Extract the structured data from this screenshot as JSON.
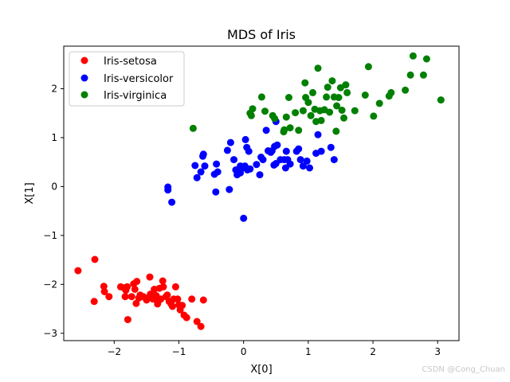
{
  "chart_data": {
    "type": "scatter",
    "title": "MDS of Iris",
    "xlabel": "X[0]",
    "ylabel": "X[1]",
    "xlim": [
      -2.78,
      3.33
    ],
    "ylim": [
      -3.15,
      2.87
    ],
    "xticks": [
      -2,
      -1,
      0,
      1,
      2,
      3
    ],
    "yticks": [
      -3,
      -2,
      -1,
      0,
      1,
      2
    ],
    "tick_labels_x": [
      "−2",
      "−1",
      "0",
      "1",
      "2",
      "3"
    ],
    "tick_labels_y": [
      "−3",
      "−2",
      "−1",
      "0",
      "1",
      "2"
    ],
    "grid": false,
    "legend": "top-left",
    "series": [
      {
        "name": "Iris-setosa",
        "color": "#ff0000",
        "points": [
          [
            -2.56,
            -1.72
          ],
          [
            -2.3,
            -1.49
          ],
          [
            -2.31,
            -2.35
          ],
          [
            -2.16,
            -2.04
          ],
          [
            -2.15,
            -2.15
          ],
          [
            -2.08,
            -2.25
          ],
          [
            -1.9,
            -2.05
          ],
          [
            -1.85,
            -2.07
          ],
          [
            -1.82,
            -2.12
          ],
          [
            -1.83,
            -2.25
          ],
          [
            -1.8,
            -2.05
          ],
          [
            -1.79,
            -2.72
          ],
          [
            -1.73,
            -2.25
          ],
          [
            -1.7,
            -1.99
          ],
          [
            -1.68,
            -2.1
          ],
          [
            -1.66,
            -2.39
          ],
          [
            -1.65,
            -1.94
          ],
          [
            -1.62,
            -2.28
          ],
          [
            -1.55,
            -2.25
          ],
          [
            -1.5,
            -2.32
          ],
          [
            -1.48,
            -2.28
          ],
          [
            -1.45,
            -1.85
          ],
          [
            -1.44,
            -2.2
          ],
          [
            -1.4,
            -2.3
          ],
          [
            -1.38,
            -2.1
          ],
          [
            -1.35,
            -2.23
          ],
          [
            -1.33,
            -2.4
          ],
          [
            -1.32,
            -2.35
          ],
          [
            -1.3,
            -2.08
          ],
          [
            -1.28,
            -2.3
          ],
          [
            -1.25,
            -1.93
          ],
          [
            -1.24,
            -2.05
          ],
          [
            -1.2,
            -2.25
          ],
          [
            -1.18,
            -2.22
          ],
          [
            -1.15,
            -2.35
          ],
          [
            -1.12,
            -2.4
          ],
          [
            -1.1,
            -2.45
          ],
          [
            -1.08,
            -2.3
          ],
          [
            -1.05,
            -2.05
          ],
          [
            -1.02,
            -2.3
          ],
          [
            -1.0,
            -2.42
          ],
          [
            -0.98,
            -2.52
          ],
          [
            -0.95,
            -2.43
          ],
          [
            -0.92,
            -2.63
          ],
          [
            -0.88,
            -2.68
          ],
          [
            -0.8,
            -2.3
          ],
          [
            -0.72,
            -2.76
          ],
          [
            -0.66,
            -2.86
          ],
          [
            -0.62,
            -2.32
          ],
          [
            -1.6,
            -2.22
          ]
        ]
      },
      {
        "name": "Iris-versicolor",
        "color": "#0000ff",
        "points": [
          [
            -1.17,
            -0.07
          ],
          [
            -1.17,
            -0.01
          ],
          [
            -1.11,
            -0.32
          ],
          [
            -0.75,
            0.43
          ],
          [
            -0.72,
            0.18
          ],
          [
            -0.66,
            0.3
          ],
          [
            -0.63,
            0.62
          ],
          [
            -0.62,
            0.66
          ],
          [
            -0.6,
            0.42
          ],
          [
            -0.45,
            0.25
          ],
          [
            -0.43,
            -0.11
          ],
          [
            -0.42,
            0.46
          ],
          [
            -0.4,
            0.3
          ],
          [
            -0.25,
            0.74
          ],
          [
            -0.22,
            -0.06
          ],
          [
            -0.2,
            0.9
          ],
          [
            -0.15,
            0.55
          ],
          [
            -0.12,
            0.34
          ],
          [
            -0.1,
            0.24
          ],
          [
            -0.07,
            0.32
          ],
          [
            -0.05,
            0.42
          ],
          [
            -0.05,
            0.28
          ],
          [
            -0.02,
            0.38
          ],
          [
            0.0,
            -0.65
          ],
          [
            0.02,
            0.42
          ],
          [
            0.03,
            0.96
          ],
          [
            0.05,
            0.8
          ],
          [
            0.06,
            0.34
          ],
          [
            0.08,
            0.72
          ],
          [
            0.1,
            0.36
          ],
          [
            0.2,
            0.45
          ],
          [
            0.25,
            0.24
          ],
          [
            0.27,
            0.6
          ],
          [
            0.3,
            0.55
          ],
          [
            0.35,
            1.15
          ],
          [
            0.38,
            0.73
          ],
          [
            0.42,
            0.7
          ],
          [
            0.44,
            0.73
          ],
          [
            0.47,
            0.44
          ],
          [
            0.48,
            0.82
          ],
          [
            0.5,
            0.47
          ],
          [
            0.5,
            1.33
          ],
          [
            0.52,
            0.85
          ],
          [
            0.57,
            0.55
          ],
          [
            0.63,
            0.55
          ],
          [
            0.66,
            0.72
          ],
          [
            0.68,
            0.55
          ],
          [
            0.72,
            0.46
          ],
          [
            0.82,
            0.72
          ],
          [
            0.85,
            0.77
          ],
          [
            0.88,
            0.55
          ],
          [
            0.92,
            0.42
          ],
          [
            0.98,
            0.52
          ],
          [
            1.02,
            0.38
          ],
          [
            1.12,
            0.68
          ],
          [
            1.15,
            1.06
          ],
          [
            1.2,
            0.72
          ],
          [
            1.35,
            0.8
          ],
          [
            1.4,
            0.55
          ],
          [
            0.65,
            0.38
          ]
        ]
      },
      {
        "name": "Iris-virginica",
        "color": "#008000",
        "points": [
          [
            -0.78,
            1.19
          ],
          [
            0.1,
            1.5
          ],
          [
            0.12,
            1.45
          ],
          [
            0.14,
            1.59
          ],
          [
            0.28,
            1.83
          ],
          [
            0.33,
            1.54
          ],
          [
            0.45,
            1.45
          ],
          [
            0.48,
            1.39
          ],
          [
            0.62,
            1.12
          ],
          [
            0.63,
            1.16
          ],
          [
            0.66,
            1.42
          ],
          [
            0.7,
            1.82
          ],
          [
            0.72,
            1.2
          ],
          [
            0.8,
            1.51
          ],
          [
            0.85,
            1.15
          ],
          [
            0.92,
            1.55
          ],
          [
            0.95,
            2.12
          ],
          [
            0.96,
            1.82
          ],
          [
            1.0,
            1.72
          ],
          [
            1.04,
            1.45
          ],
          [
            1.07,
            1.92
          ],
          [
            1.1,
            1.58
          ],
          [
            1.12,
            1.33
          ],
          [
            1.15,
            2.42
          ],
          [
            1.18,
            1.55
          ],
          [
            1.2,
            1.35
          ],
          [
            1.25,
            1.57
          ],
          [
            1.28,
            1.83
          ],
          [
            1.3,
            2.03
          ],
          [
            1.33,
            1.52
          ],
          [
            1.37,
            2.16
          ],
          [
            1.4,
            1.83
          ],
          [
            1.43,
            1.13
          ],
          [
            1.44,
            1.65
          ],
          [
            1.47,
            1.82
          ],
          [
            1.5,
            2.02
          ],
          [
            1.52,
            1.56
          ],
          [
            1.55,
            1.4
          ],
          [
            1.58,
            2.08
          ],
          [
            1.6,
            1.92
          ],
          [
            1.72,
            1.55
          ],
          [
            1.88,
            1.87
          ],
          [
            1.93,
            2.45
          ],
          [
            2.01,
            1.44
          ],
          [
            2.1,
            1.7
          ],
          [
            2.25,
            1.85
          ],
          [
            2.28,
            1.92
          ],
          [
            2.5,
            1.97
          ],
          [
            2.58,
            2.28
          ],
          [
            2.62,
            2.67
          ],
          [
            2.78,
            2.28
          ],
          [
            2.83,
            2.61
          ],
          [
            3.05,
            1.77
          ]
        ]
      }
    ]
  },
  "watermark": "CSDN @Cong_Chuan"
}
